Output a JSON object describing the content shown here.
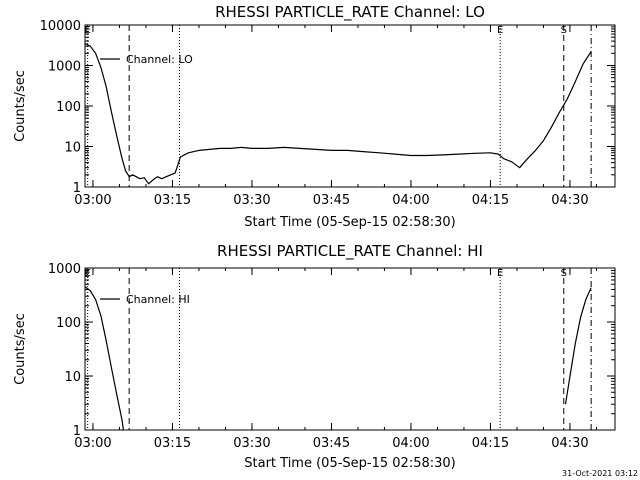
{
  "chart_data": [
    {
      "type": "line",
      "title": "RHESSI PARTICLE_RATE Channel: LO",
      "xlabel": "Start Time (05-Sep-15 02:58:30)",
      "ylabel": "Counts/sec",
      "yscale": "log",
      "xlim": [
        "02:58:30",
        "04:38:30"
      ],
      "ylim": [
        1,
        10000
      ],
      "x_ticks": [
        "03:00",
        "03:15",
        "03:30",
        "03:45",
        "04:00",
        "04:15",
        "04:30"
      ],
      "y_ticks": [
        "1",
        "10",
        "100",
        "1000",
        "10000"
      ],
      "legend": {
        "entry": "Channel: LO",
        "placement": "top-left"
      },
      "markers": [
        {
          "label": "E",
          "time": "02:59:00",
          "style": "dotted"
        },
        {
          "label": "",
          "time": "03:06:50",
          "style": "dashed"
        },
        {
          "label": "",
          "time": "03:16:20",
          "style": "dotted"
        },
        {
          "label": "E",
          "time": "04:16:50",
          "style": "dotted"
        },
        {
          "label": "S",
          "time": "04:28:50",
          "style": "dashed"
        },
        {
          "label": "",
          "time": "04:34:00",
          "style": "dashdot"
        }
      ],
      "series": [
        {
          "x": [
            "02:58:30",
            "02:59:30",
            "03:00:30",
            "03:01:30",
            "03:02:30",
            "03:03:30",
            "03:04:30",
            "03:05:30",
            "03:06:10",
            "03:06:50",
            "03:07:30",
            "03:08:10",
            "03:08:50",
            "03:09:40",
            "03:10:30",
            "03:11:20",
            "03:12:10",
            "03:13:00",
            "03:13:50",
            "03:14:40",
            "03:15:30",
            "03:16:10",
            "03:16:30",
            "03:18:00",
            "03:20:00",
            "03:22:00",
            "03:24:00",
            "03:26:00",
            "03:28:00",
            "03:30:00",
            "03:33:00",
            "03:36:00",
            "03:39:00",
            "03:42:00",
            "03:45:00",
            "03:48:00",
            "03:51:00",
            "03:54:00",
            "03:57:00",
            "04:00:00",
            "04:03:00",
            "04:06:00",
            "04:09:00",
            "04:12:00",
            "04:15:00",
            "04:16:30",
            "04:17:30",
            "04:19:00",
            "04:20:30",
            "04:22:00",
            "04:23:30",
            "04:25:00",
            "04:26:30",
            "04:28:00",
            "04:29:30",
            "04:31:00",
            "04:32:30",
            "04:34:00"
          ],
          "y": [
            3500,
            3000,
            2000,
            900,
            300,
            70,
            18,
            5,
            2.5,
            1.8,
            2,
            1.8,
            1.6,
            1.7,
            1.2,
            1.5,
            1.8,
            1.6,
            1.8,
            2,
            2.2,
            4,
            5.5,
            7,
            8,
            8.5,
            9,
            9,
            9.5,
            9,
            9,
            9.5,
            9,
            8.5,
            8,
            8,
            7.5,
            7,
            6.5,
            6,
            6,
            6.2,
            6.5,
            6.8,
            7,
            6.5,
            5,
            4.2,
            3,
            5,
            8,
            14,
            30,
            70,
            150,
            400,
            1100,
            2200
          ]
        }
      ]
    },
    {
      "type": "line",
      "title": "RHESSI PARTICLE_RATE Channel: HI",
      "xlabel": "Start Time (05-Sep-15 02:58:30)",
      "ylabel": "Counts/sec",
      "yscale": "log",
      "xlim": [
        "02:58:30",
        "04:38:30"
      ],
      "ylim": [
        1,
        1000
      ],
      "x_ticks": [
        "03:00",
        "03:15",
        "03:30",
        "03:45",
        "04:00",
        "04:15",
        "04:30"
      ],
      "y_ticks": [
        "1",
        "10",
        "100",
        "1000"
      ],
      "legend": {
        "entry": "Channel: HI",
        "placement": "top-left"
      },
      "markers": [
        {
          "label": "E",
          "time": "02:59:00",
          "style": "dotted"
        },
        {
          "label": "",
          "time": "03:06:50",
          "style": "dashed"
        },
        {
          "label": "",
          "time": "03:16:20",
          "style": "dotted"
        },
        {
          "label": "E",
          "time": "04:16:50",
          "style": "dotted"
        },
        {
          "label": "S",
          "time": "04:28:50",
          "style": "dashed"
        },
        {
          "label": "",
          "time": "04:34:00",
          "style": "dashdot"
        }
      ],
      "series": [
        {
          "segments": [
            {
              "x": [
                "02:58:30",
                "02:59:30",
                "03:00:30",
                "03:01:30",
                "03:02:30",
                "03:03:30",
                "03:04:30",
                "03:05:30",
                "03:05:45"
              ],
              "y": [
                450,
                380,
                260,
                130,
                45,
                14,
                4.5,
                1.5,
                1
              ]
            },
            {
              "x": [
                "04:29:10",
                "04:30:00",
                "04:31:00",
                "04:32:00",
                "04:33:00",
                "04:34:00"
              ],
              "y": [
                3,
                10,
                40,
                120,
                260,
                430
              ]
            }
          ]
        }
      ]
    }
  ],
  "footer": {
    "timestamp": "31-Oct-2021 03:12"
  }
}
